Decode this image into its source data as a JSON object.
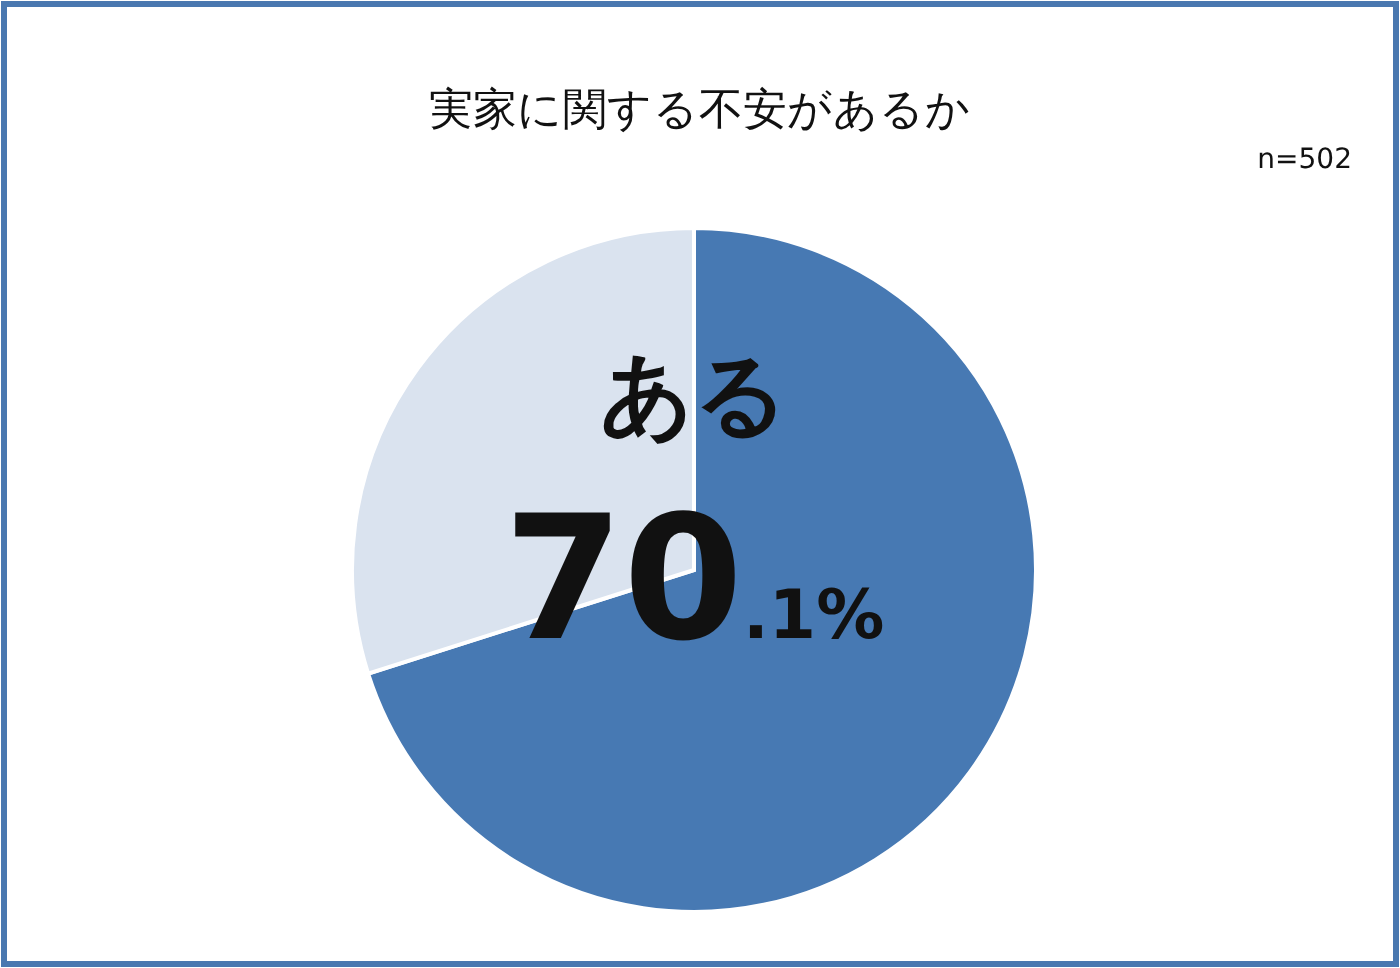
{
  "chart_data": {
    "type": "pie",
    "title": "実家に関する不安があるか",
    "annotations": [
      "n=502"
    ],
    "categories": [
      "ある",
      null
    ],
    "values": [
      70.1,
      29.9
    ],
    "colors": [
      "#4779b3",
      "#dae3ef"
    ],
    "value_labels": [
      "70.1%",
      null
    ]
  }
}
